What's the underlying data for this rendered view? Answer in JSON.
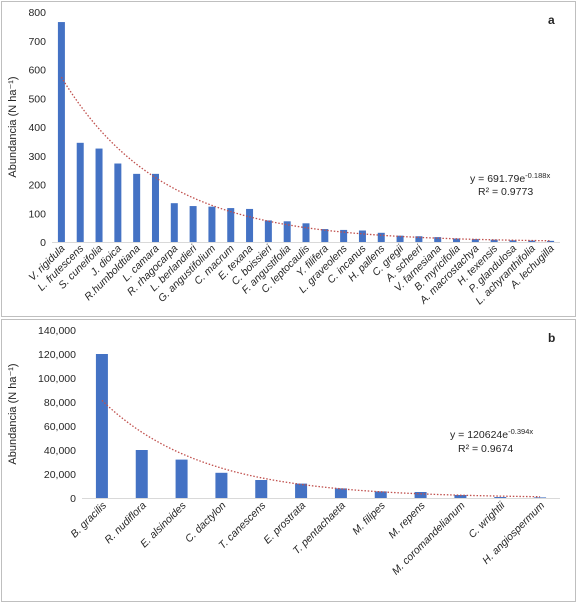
{
  "chart_data": [
    {
      "panel": "a",
      "type": "bar",
      "ylabel": "Abundancia (N ha⁻¹)",
      "ylim": [
        0,
        800
      ],
      "yticks": [
        "0",
        "100",
        "200",
        "300",
        "400",
        "500",
        "600",
        "700",
        "800"
      ],
      "grid": false,
      "color": "#4472c4",
      "categories": [
        "V. rigidula",
        "L. frutescens",
        "S. cuneifolia",
        "J. dioica",
        "R.humboldtiana",
        "L. camara",
        "R. rhagocarpa",
        "L. berlandieri",
        "G. angustifolium",
        "C. macrum",
        "E. texana",
        "C. boissieri",
        "F. angustifolia",
        "C. leptocaulis",
        "Y. filifera",
        "L. graveolens",
        "C. incanus",
        "H. pallens",
        "C. gregii",
        "A. scheeri",
        "V. farnesiana",
        "B. myricifolia",
        "A. macrostachya",
        "H. texensis",
        "P. glandulosa",
        "L. achyranthifolia",
        "A. lechugilla"
      ],
      "values": [
        765,
        345,
        325,
        273,
        237,
        237,
        135,
        125,
        123,
        118,
        115,
        75,
        72,
        65,
        45,
        42,
        40,
        32,
        22,
        20,
        17,
        12,
        10,
        8,
        6,
        5,
        4
      ],
      "trendline": {
        "type": "exponential",
        "a": 691.79,
        "b": -0.188,
        "color": "#c0504d"
      },
      "equation_base": "y = 691.79e",
      "equation_exp": "-0.188x",
      "r2": "R² = 0.9773"
    },
    {
      "panel": "b",
      "type": "bar",
      "ylabel": "Abundancia (N ha⁻¹)",
      "ylim": [
        0,
        140000
      ],
      "yticks": [
        "0",
        "20,000",
        "40,000",
        "60,000",
        "80,000",
        "100,000",
        "120,000",
        "140,000"
      ],
      "grid": false,
      "color": "#4472c4",
      "categories": [
        "B. gracilis",
        "R. nudiflora",
        "E. alsinoides",
        "C. dactylon",
        "T. canescens",
        "E. prostrata",
        "T. pentachaeta",
        "M. filipes",
        "M. repens",
        "M. coromandelianum",
        "C. wrightii",
        "H. angiospermum"
      ],
      "values": [
        120000,
        40000,
        32000,
        21000,
        15000,
        12000,
        8000,
        5500,
        5000,
        2500,
        800,
        500
      ],
      "trendline": {
        "type": "exponential",
        "a": 120624,
        "b": -0.394,
        "color": "#c0504d"
      },
      "equation_base": "y = 120624e",
      "equation_exp": "-0.394x",
      "r2": "R² = 0.9674"
    }
  ]
}
